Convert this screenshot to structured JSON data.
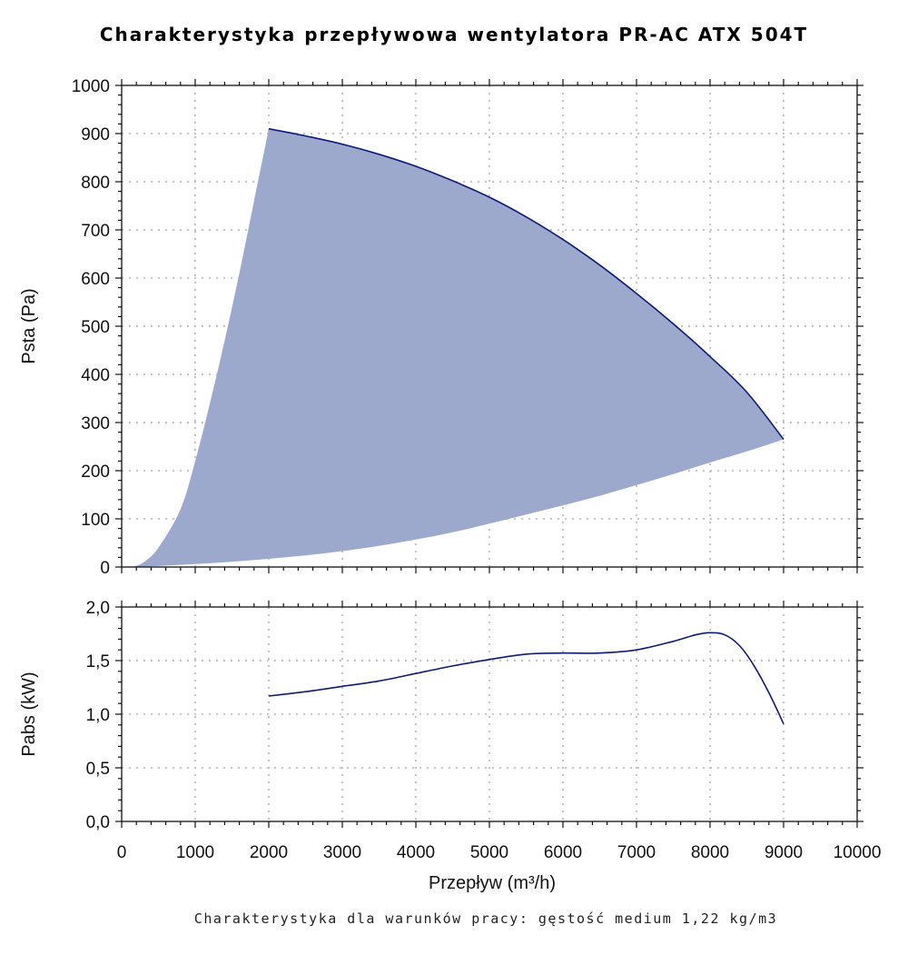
{
  "chart_data": [
    {
      "type": "area",
      "title": "Charakterystyka przepływowa wentylatora PR-AC ATX 504T",
      "ylabel": "Psta (Pa)",
      "xlabel": "",
      "xlim": [
        0,
        10000
      ],
      "ylim": [
        0,
        1000
      ],
      "x_ticks": [
        0,
        1000,
        2000,
        3000,
        4000,
        5000,
        6000,
        7000,
        8000,
        9000,
        10000
      ],
      "y_ticks": [
        "0",
        "100",
        "200",
        "300",
        "400",
        "500",
        "600",
        "700",
        "800",
        "900",
        "1000"
      ],
      "grid": true,
      "colors": {
        "fill": "#9da8cd",
        "line": "#0d1a7a"
      },
      "series": [
        {
          "x": [
            2000,
            2500,
            3000,
            3500,
            4000,
            4500,
            5000,
            5500,
            6000,
            6500,
            7000,
            7500,
            8000,
            8500,
            9000
          ],
          "values": [
            910,
            895,
            878,
            857,
            832,
            802,
            768,
            727,
            680,
            627,
            568,
            505,
            437,
            363,
            265
          ]
        }
      ],
      "lower_boundary": {
        "x": [
          150,
          500,
          1000,
          1500,
          2000,
          2500,
          3000,
          3500,
          4000,
          4500,
          5000,
          5500,
          6000,
          6500,
          7000,
          7500,
          8000,
          8500,
          9000
        ],
        "values": [
          0,
          2,
          6,
          11,
          17,
          24,
          33,
          44,
          57,
          72,
          90,
          109,
          128,
          148,
          170,
          193,
          217,
          240,
          265
        ]
      },
      "left_boundary": {
        "x": [
          150,
          300,
          500,
          800,
          1000,
          1200,
          1400,
          1600,
          1800,
          2000
        ],
        "values": [
          0,
          10,
          40,
          120,
          220,
          340,
          470,
          610,
          760,
          910
        ]
      }
    },
    {
      "type": "line",
      "ylabel": "Pabs (kW)",
      "xlabel": "Przepływ (m³/h)",
      "xlim": [
        0,
        10000
      ],
      "ylim": [
        0,
        2
      ],
      "x_ticks": [
        0,
        1000,
        2000,
        3000,
        4000,
        5000,
        6000,
        7000,
        8000,
        9000,
        10000
      ],
      "y_ticks": [
        "0,0",
        "0,5",
        "1,0",
        "1,5",
        "2,0"
      ],
      "grid": true,
      "colors": {
        "line": "#0d1a7a"
      },
      "series": [
        {
          "x": [
            2000,
            2500,
            3000,
            3500,
            4000,
            4500,
            5000,
            5500,
            6000,
            6500,
            7000,
            7500,
            7800,
            8000,
            8200,
            8400,
            8600,
            8800,
            9000
          ],
          "values": [
            1.17,
            1.21,
            1.26,
            1.31,
            1.38,
            1.45,
            1.51,
            1.56,
            1.57,
            1.57,
            1.6,
            1.68,
            1.74,
            1.76,
            1.74,
            1.64,
            1.45,
            1.2,
            0.91
          ]
        }
      ]
    }
  ],
  "footnote": "Charakterystyka dla warunków pracy: gęstość medium 1,22 kg/m3"
}
